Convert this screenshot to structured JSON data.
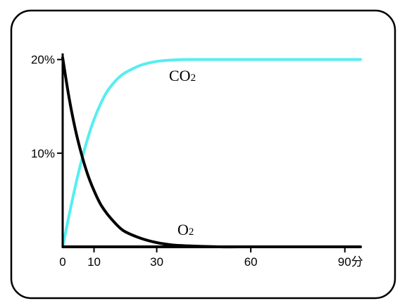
{
  "chart_data": {
    "type": "line",
    "title": "",
    "xlabel": "",
    "ylabel": "",
    "xlim": [
      0,
      95
    ],
    "ylim": [
      0,
      20.5
    ],
    "x_ticks": [
      0,
      10,
      30,
      60,
      90
    ],
    "x_tick_labels": [
      "0",
      "10",
      "30",
      "60",
      "90分"
    ],
    "y_ticks": [
      10,
      20
    ],
    "y_tick_labels": [
      "10%",
      "20%"
    ],
    "grid": false,
    "legend": "none",
    "series": [
      {
        "name": "CO2",
        "label_main": "CO",
        "label_sub": "2",
        "color": "#55eef0",
        "x": [
          0,
          2,
          4,
          6,
          8,
          10,
          12,
          14,
          16,
          18,
          20,
          25,
          30,
          35,
          40,
          50,
          60,
          70,
          80,
          90,
          95
        ],
        "y": [
          0,
          3.3,
          6.4,
          9.2,
          11.6,
          13.6,
          15.2,
          16.5,
          17.4,
          18.1,
          18.6,
          19.4,
          19.8,
          19.95,
          20.0,
          20.0,
          20.0,
          20.0,
          20.0,
          20.0,
          20.0
        ]
      },
      {
        "name": "O2",
        "label_main": "O",
        "label_sub": "2",
        "color": "#000000",
        "x": [
          0,
          2,
          4,
          6,
          8,
          10,
          12,
          14,
          16,
          18,
          20,
          25,
          30,
          35,
          40,
          50,
          60,
          70,
          80,
          90,
          95
        ],
        "y": [
          20.2,
          16.0,
          12.6,
          9.9,
          7.7,
          6.0,
          4.6,
          3.6,
          2.8,
          2.1,
          1.6,
          0.9,
          0.45,
          0.2,
          0.1,
          0.0,
          0.0,
          0.0,
          0.0,
          0.0,
          0.0
        ]
      }
    ]
  },
  "colors": {
    "frame_border": "#000000",
    "axis": "#000000",
    "background": "#ffffff"
  }
}
